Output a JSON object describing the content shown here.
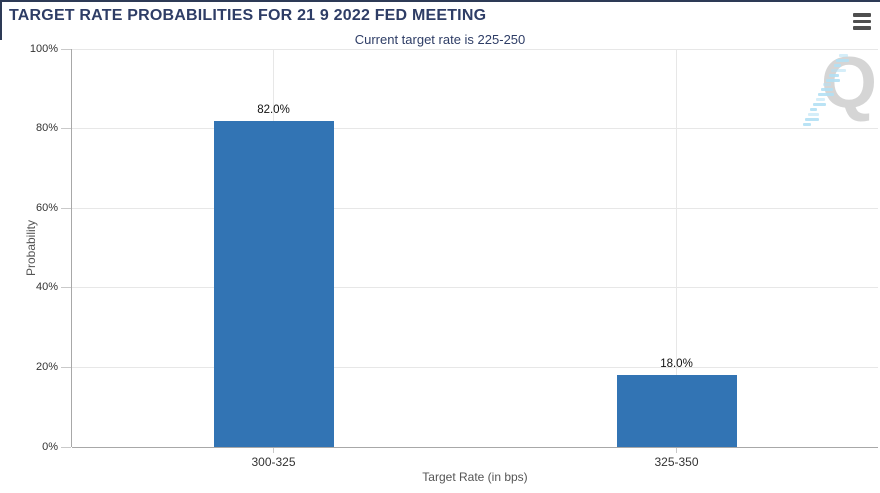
{
  "header": {
    "title": "TARGET RATE PROBABILITIES FOR 21 9 2022 FED MEETING"
  },
  "menu": {
    "icon": "hamburger-icon"
  },
  "watermark": {
    "letter": "Q"
  },
  "chart_data": {
    "type": "bar",
    "title": "TARGET RATE PROBABILITIES FOR 21 9 2022 FED MEETING",
    "subtitle": "Current target rate is 225-250",
    "categories": [
      "300-325",
      "325-350"
    ],
    "values": [
      82.0,
      18.0
    ],
    "value_labels": [
      "82.0%",
      "18.0%"
    ],
    "xlabel": "Target Rate (in bps)",
    "ylabel": "Probability",
    "ylim": [
      0,
      100
    ],
    "ytick_values": [
      0,
      20,
      40,
      60,
      80,
      100
    ],
    "ytick_labels": [
      "0%",
      "20%",
      "40%",
      "60%",
      "80%",
      "100%"
    ],
    "grid": true,
    "legend": "none",
    "bar_color": "#3274b4"
  },
  "colors": {
    "title_navy": "#2e3d66",
    "bar_blue": "#3274b4",
    "gridline": "#e7e7e7",
    "axis_line": "#a8a8a8",
    "tick_text": "#333333",
    "axis_title_text": "#555555"
  }
}
